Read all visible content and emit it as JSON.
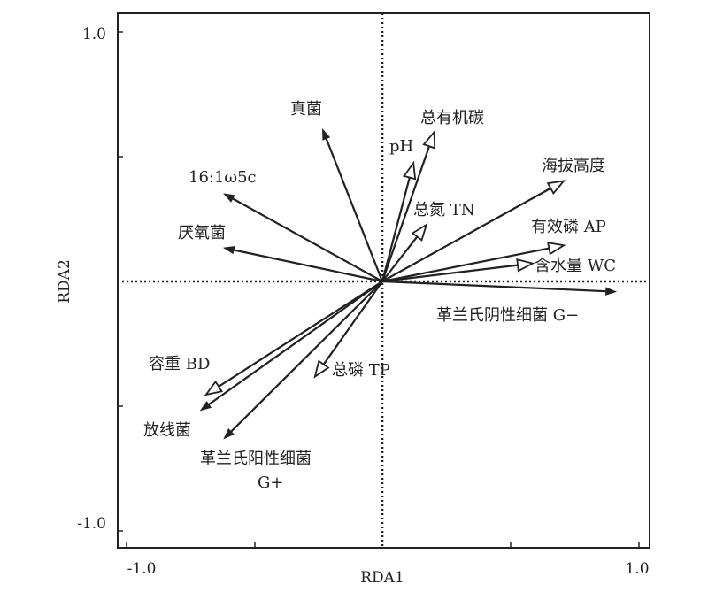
{
  "chart_data": {
    "type": "rda-biplot",
    "xlabel": "RDA1",
    "ylabel": "RDA2",
    "xlim": [
      -1.0,
      1.0
    ],
    "ylim": [
      -1.0,
      1.0
    ],
    "x_tick_labels": [
      "-1.0",
      "1.0"
    ],
    "y_tick_labels": [
      "1.0",
      "-1.0"
    ],
    "origin_lines": "dotted",
    "colors": {
      "arrow": "#222222",
      "frame": "#222222",
      "background": "#ffffff"
    },
    "environment_variables": [
      {
        "label": "总有机碳",
        "x": 0.2,
        "y": 0.58
      },
      {
        "label": "pH",
        "x": 0.12,
        "y": 0.46
      },
      {
        "label": "海拔高度",
        "x": 0.7,
        "y": 0.39
      },
      {
        "label": "总氮 TN",
        "x": 0.17,
        "y": 0.22
      },
      {
        "label": "有效磷 AP",
        "x": 0.7,
        "y": 0.14
      },
      {
        "label": "含水量 WC",
        "x": 0.58,
        "y": 0.07
      },
      {
        "label": "总磷 TP",
        "x": -0.26,
        "y": -0.37
      },
      {
        "label": "容重 BD",
        "x": -0.68,
        "y": -0.44
      }
    ],
    "response_variables": [
      {
        "label": "真菌",
        "x": -0.23,
        "y": 0.59
      },
      {
        "label": "16:1ω5c",
        "x": -0.61,
        "y": 0.34
      },
      {
        "label": "厌氧菌",
        "x": -0.61,
        "y": 0.13
      },
      {
        "label": "革兰氏阴性细菌 G−",
        "x": 0.9,
        "y": -0.04
      },
      {
        "label": "放线菌",
        "x": -0.7,
        "y": -0.5
      },
      {
        "label": "革兰氏阳性细菌 G+",
        "x": -0.61,
        "y": -0.61
      }
    ]
  }
}
